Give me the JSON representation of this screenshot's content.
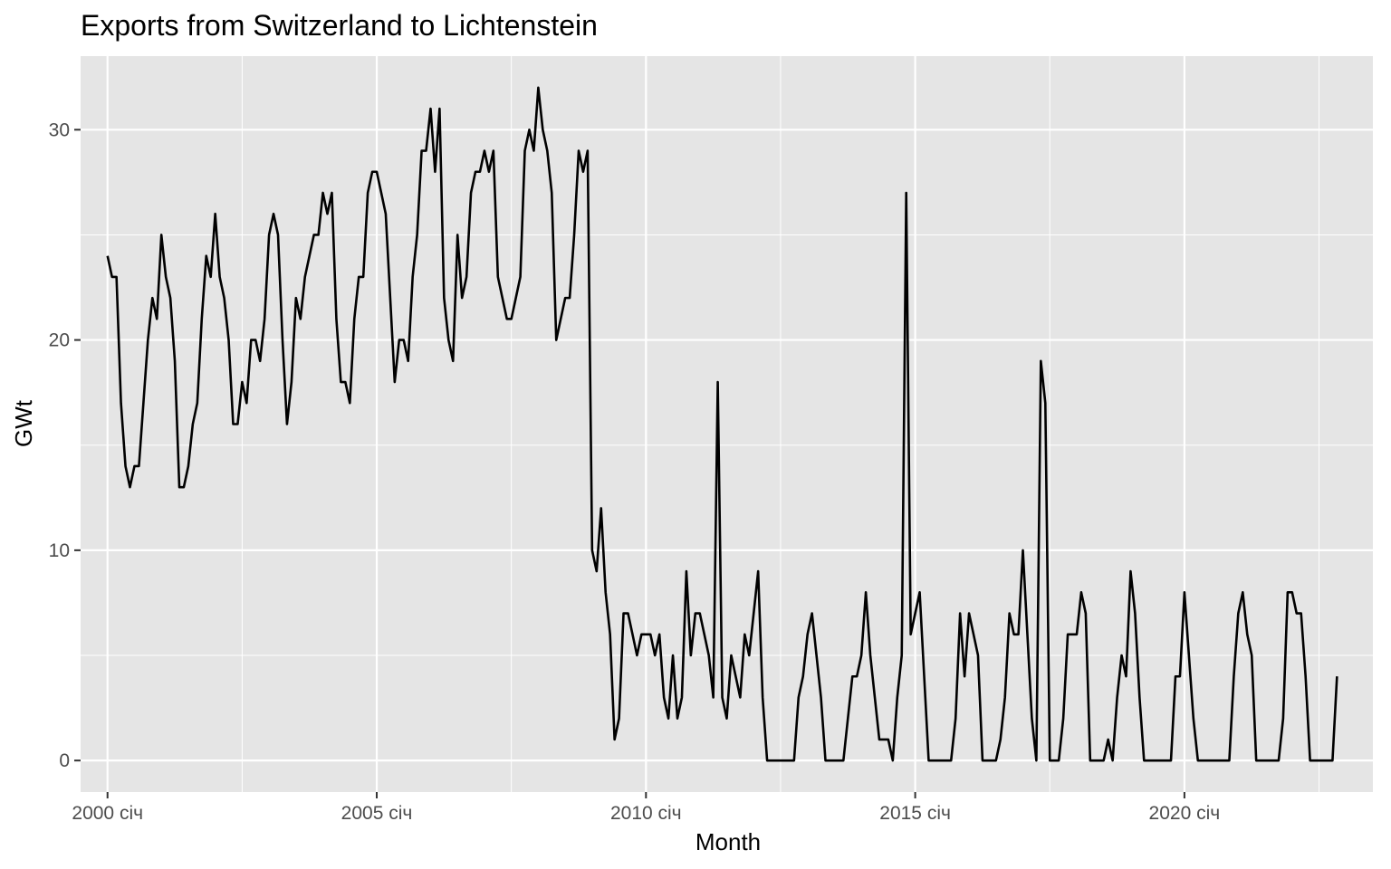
{
  "chart_data": {
    "type": "line",
    "title": "Exports from Switzerland to Lichtenstein",
    "xlabel": "Month",
    "ylabel": "GWt",
    "x_start": "2000-01",
    "x_ticks": [
      "2000 січ",
      "2005 січ",
      "2010 січ",
      "2015 січ",
      "2020 січ"
    ],
    "y_ticks": [
      0,
      10,
      20,
      30
    ],
    "xlim": [
      "1999-07",
      "2023-07"
    ],
    "ylim": [
      -1.5,
      33.5
    ],
    "grid": true,
    "legend": "none",
    "colors": {
      "panel": "#e5e5e5",
      "grid": "#ffffff",
      "line": "#000000",
      "tick_text": "#4d4d4d"
    },
    "series": [
      {
        "values": [
          24,
          23,
          23,
          17,
          14,
          13,
          14,
          14,
          17,
          20,
          22,
          21,
          25,
          23,
          22,
          19,
          13,
          13,
          14,
          16,
          17,
          21,
          24,
          23,
          26,
          23,
          22,
          20,
          16,
          16,
          18,
          17,
          20,
          20,
          19,
          21,
          25,
          26,
          25,
          20,
          16,
          18,
          22,
          21,
          23,
          24,
          25,
          25,
          27,
          26,
          27,
          21,
          18,
          18,
          17,
          21,
          23,
          23,
          27,
          28,
          28,
          27,
          26,
          22,
          18,
          20,
          20,
          19,
          23,
          25,
          29,
          29,
          31,
          28,
          31,
          22,
          20,
          19,
          25,
          22,
          23,
          27,
          28,
          28,
          29,
          28,
          29,
          23,
          22,
          21,
          21,
          22,
          23,
          29,
          30,
          29,
          32,
          30,
          29,
          27,
          20,
          21,
          22,
          22,
          25,
          29,
          28,
          29,
          10,
          9,
          12,
          8,
          6,
          1,
          2,
          7,
          7,
          6,
          5,
          6,
          6,
          6,
          5,
          6,
          3,
          2,
          5,
          2,
          3,
          9,
          5,
          7,
          7,
          6,
          5,
          3,
          18,
          3,
          2,
          5,
          4,
          3,
          6,
          5,
          7,
          9,
          3,
          0,
          0,
          0,
          0,
          0,
          0,
          0,
          3,
          4,
          6,
          7,
          5,
          3,
          0,
          0,
          0,
          0,
          0,
          2,
          4,
          4,
          5,
          8,
          5,
          3,
          1,
          1,
          1,
          0,
          3,
          5,
          27,
          6,
          7,
          8,
          4,
          0,
          0,
          0,
          0,
          0,
          0,
          2,
          7,
          4,
          7,
          6,
          5,
          0,
          0,
          0,
          0,
          1,
          3,
          7,
          6,
          6,
          10,
          6,
          2,
          0,
          19,
          17,
          0,
          0,
          0,
          2,
          6,
          6,
          6,
          8,
          7,
          0,
          0,
          0,
          0,
          1,
          0,
          3,
          5,
          4,
          9,
          7,
          3,
          0,
          0,
          0,
          0,
          0,
          0,
          0,
          4,
          4,
          8,
          5,
          2,
          0,
          0,
          0,
          0,
          0,
          0,
          0,
          0,
          4,
          7,
          8,
          6,
          5,
          0,
          0,
          0,
          0,
          0,
          0,
          2,
          8,
          8,
          7,
          7,
          4,
          0,
          0,
          0,
          0,
          0,
          0,
          4
        ]
      }
    ]
  }
}
